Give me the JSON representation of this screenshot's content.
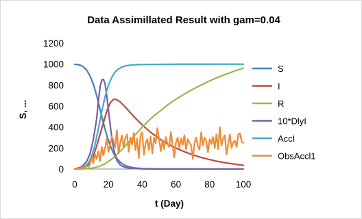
{
  "chart_data": {
    "type": "line",
    "title": "Data Assimillated Result with gam=0.04",
    "xlabel": "t (Day)",
    "ylabel": "S, ...",
    "xlim": [
      0,
      100
    ],
    "ylim": [
      0,
      1200
    ],
    "xticks": [
      "0",
      "20",
      "40",
      "60",
      "80",
      "100"
    ],
    "yticks": [
      "0",
      "200",
      "400",
      "600",
      "800",
      "1000",
      "1200"
    ],
    "grid": false,
    "legend_position": "right",
    "series": [
      {
        "name": "S",
        "color": "#4A7EBB",
        "points": [
          [
            0,
            998
          ],
          [
            3,
            992
          ],
          [
            5,
            975
          ],
          [
            7,
            945
          ],
          [
            9,
            890
          ],
          [
            11,
            810
          ],
          [
            13,
            700
          ],
          [
            15,
            570
          ],
          [
            17,
            440
          ],
          [
            19,
            320
          ],
          [
            21,
            225
          ],
          [
            23,
            150
          ],
          [
            25,
            100
          ],
          [
            27,
            65
          ],
          [
            29,
            42
          ],
          [
            31,
            28
          ],
          [
            33,
            18
          ],
          [
            36,
            10
          ],
          [
            40,
            5
          ],
          [
            50,
            2
          ],
          [
            60,
            1
          ],
          [
            100,
            0
          ]
        ]
      },
      {
        "name": "I",
        "color": "#BE4B48",
        "points": [
          [
            0,
            2
          ],
          [
            4,
            8
          ],
          [
            8,
            40
          ],
          [
            11,
            120
          ],
          [
            13,
            220
          ],
          [
            15,
            330
          ],
          [
            17,
            440
          ],
          [
            19,
            550
          ],
          [
            21,
            630
          ],
          [
            23,
            665
          ],
          [
            25,
            660
          ],
          [
            27,
            640
          ],
          [
            30,
            590
          ],
          [
            35,
            500
          ],
          [
            40,
            420
          ],
          [
            45,
            350
          ],
          [
            50,
            290
          ],
          [
            55,
            240
          ],
          [
            60,
            200
          ],
          [
            65,
            165
          ],
          [
            70,
            135
          ],
          [
            75,
            110
          ],
          [
            80,
            90
          ],
          [
            85,
            72
          ],
          [
            90,
            58
          ],
          [
            95,
            46
          ],
          [
            100,
            35
          ]
        ]
      },
      {
        "name": "R",
        "color": "#98B954",
        "points": [
          [
            0,
            0
          ],
          [
            5,
            2
          ],
          [
            10,
            8
          ],
          [
            14,
            22
          ],
          [
            18,
            50
          ],
          [
            22,
            95
          ],
          [
            26,
            155
          ],
          [
            30,
            220
          ],
          [
            35,
            310
          ],
          [
            40,
            400
          ],
          [
            45,
            480
          ],
          [
            50,
            545
          ],
          [
            55,
            610
          ],
          [
            60,
            665
          ],
          [
            65,
            715
          ],
          [
            70,
            760
          ],
          [
            75,
            800
          ],
          [
            80,
            840
          ],
          [
            85,
            875
          ],
          [
            90,
            905
          ],
          [
            95,
            935
          ],
          [
            100,
            960
          ]
        ]
      },
      {
        "name": "10*DlyI",
        "color": "#7D60A0",
        "points": [
          [
            0,
            0
          ],
          [
            4,
            20
          ],
          [
            7,
            70
          ],
          [
            9,
            140
          ],
          [
            11,
            280
          ],
          [
            13,
            480
          ],
          [
            14,
            640
          ],
          [
            15,
            780
          ],
          [
            16,
            850
          ],
          [
            17,
            855
          ],
          [
            18,
            810
          ],
          [
            19,
            700
          ],
          [
            20,
            560
          ],
          [
            21,
            420
          ],
          [
            22,
            300
          ],
          [
            23,
            200
          ],
          [
            24,
            130
          ],
          [
            25,
            80
          ],
          [
            27,
            40
          ],
          [
            29,
            20
          ],
          [
            32,
            10
          ],
          [
            36,
            5
          ],
          [
            40,
            2
          ],
          [
            45,
            0
          ],
          [
            100,
            0
          ]
        ]
      },
      {
        "name": "AccI",
        "color": "#46AAC5",
        "points": [
          [
            0,
            0
          ],
          [
            5,
            15
          ],
          [
            8,
            55
          ],
          [
            10,
            120
          ],
          [
            12,
            230
          ],
          [
            14,
            380
          ],
          [
            16,
            550
          ],
          [
            18,
            690
          ],
          [
            20,
            800
          ],
          [
            22,
            875
          ],
          [
            24,
            925
          ],
          [
            26,
            955
          ],
          [
            28,
            972
          ],
          [
            30,
            983
          ],
          [
            33,
            990
          ],
          [
            36,
            994
          ],
          [
            40,
            996
          ],
          [
            50,
            998
          ],
          [
            60,
            999
          ],
          [
            100,
            1000
          ]
        ]
      },
      {
        "name": "ObsAccl1",
        "color": "#F08B32",
        "points": [
          [
            0,
            0
          ],
          [
            2,
            3
          ],
          [
            4,
            6
          ],
          [
            5,
            18
          ],
          [
            6,
            5
          ],
          [
            7,
            32
          ],
          [
            8,
            20
          ],
          [
            9,
            42
          ],
          [
            10,
            110
          ],
          [
            11,
            55
          ],
          [
            12,
            140
          ],
          [
            13,
            95
          ],
          [
            14,
            170
          ],
          [
            15,
            75
          ],
          [
            16,
            210
          ],
          [
            17,
            130
          ],
          [
            18,
            200
          ],
          [
            19,
            290
          ],
          [
            20,
            165
          ],
          [
            21,
            230
          ],
          [
            22,
            310
          ],
          [
            23,
            270
          ],
          [
            24,
            210
          ],
          [
            25,
            370
          ],
          [
            26,
            150
          ],
          [
            27,
            250
          ],
          [
            28,
            320
          ],
          [
            29,
            205
          ],
          [
            30,
            295
          ],
          [
            31,
            330
          ],
          [
            32,
            165
          ],
          [
            33,
            300
          ],
          [
            34,
            230
          ],
          [
            35,
            345
          ],
          [
            36,
            180
          ],
          [
            37,
            290
          ],
          [
            38,
            105
          ],
          [
            39,
            320
          ],
          [
            40,
            350
          ],
          [
            41,
            135
          ],
          [
            42,
            245
          ],
          [
            43,
            285
          ],
          [
            44,
            180
          ],
          [
            45,
            310
          ],
          [
            46,
            150
          ],
          [
            47,
            300
          ],
          [
            48,
            245
          ],
          [
            49,
            390
          ],
          [
            50,
            290
          ],
          [
            51,
            170
          ],
          [
            52,
            275
          ],
          [
            53,
            190
          ],
          [
            54,
            305
          ],
          [
            55,
            240
          ],
          [
            56,
            210
          ],
          [
            57,
            355
          ],
          [
            58,
            230
          ],
          [
            59,
            110
          ],
          [
            60,
            250
          ],
          [
            61,
            300
          ],
          [
            62,
            200
          ],
          [
            63,
            295
          ],
          [
            64,
            230
          ],
          [
            65,
            320
          ],
          [
            66,
            185
          ],
          [
            67,
            285
          ],
          [
            68,
            250
          ],
          [
            69,
            230
          ],
          [
            70,
            95
          ],
          [
            71,
            245
          ],
          [
            72,
            300
          ],
          [
            73,
            220
          ],
          [
            74,
            185
          ],
          [
            75,
            350
          ],
          [
            76,
            225
          ],
          [
            77,
            300
          ],
          [
            78,
            270
          ],
          [
            79,
            160
          ],
          [
            80,
            285
          ],
          [
            81,
            240
          ],
          [
            82,
            305
          ],
          [
            83,
            200
          ],
          [
            84,
            330
          ],
          [
            85,
            190
          ],
          [
            86,
            400
          ],
          [
            87,
            225
          ],
          [
            88,
            290
          ],
          [
            89,
            320
          ],
          [
            90,
            140
          ],
          [
            91,
            235
          ],
          [
            92,
            330
          ],
          [
            93,
            200
          ],
          [
            94,
            255
          ],
          [
            95,
            270
          ],
          [
            96,
            210
          ],
          [
            97,
            330
          ],
          [
            98,
            340
          ],
          [
            99,
            260
          ],
          [
            100,
            250
          ]
        ]
      }
    ]
  }
}
